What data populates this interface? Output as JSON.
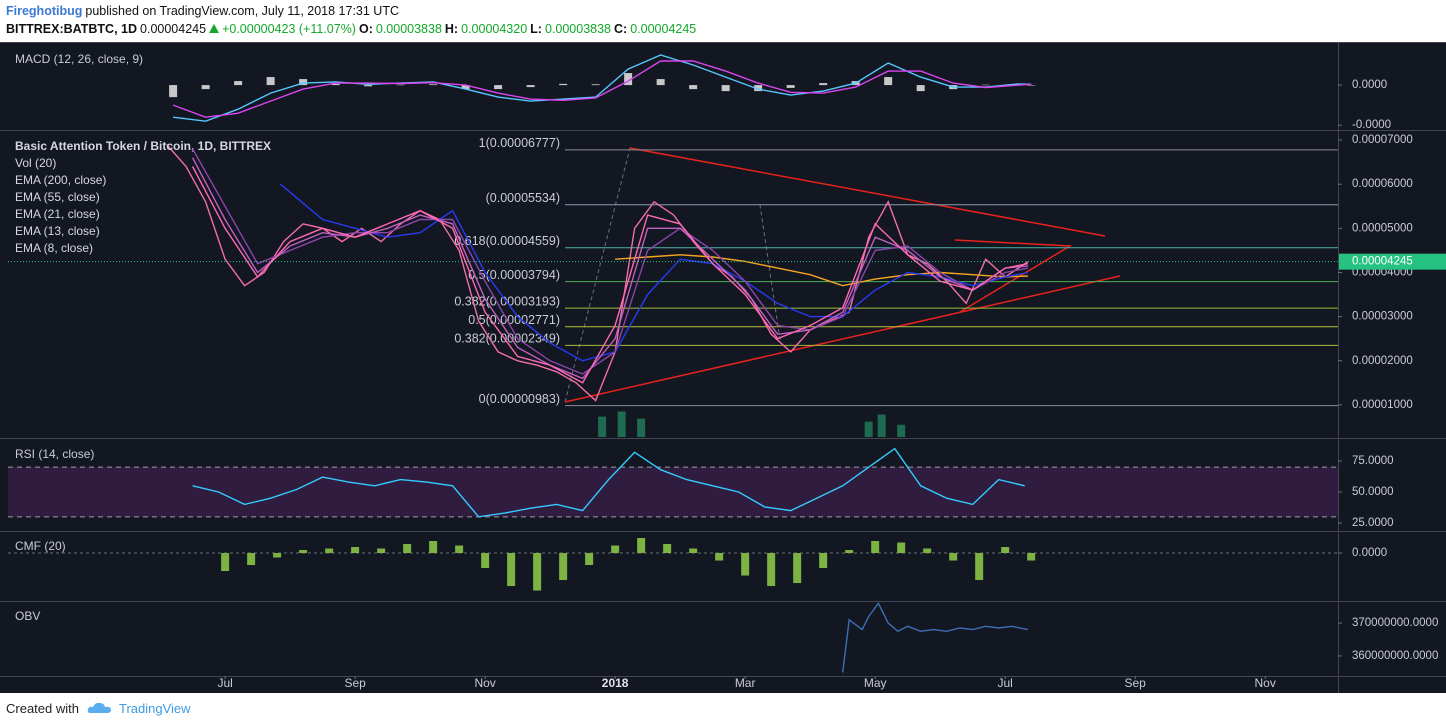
{
  "header": {
    "author": "Fireghotibug",
    "published": "published on TradingView.com, July 11, 2018 17:31 UTC",
    "symbol": "BITTREX:BATBTC, 1D",
    "last": "0.00004245",
    "change": "+0.00000423 (+11.07%)",
    "o_label": "O:",
    "open": "0.00003838",
    "h_label": "H:",
    "high": "0.00004320",
    "l_label": "L:",
    "low": "0.00003838",
    "c_label": "C:",
    "close": "0.00004245"
  },
  "footer": {
    "created_with": "Created with",
    "brand": "TradingView"
  },
  "chart_data": [
    {
      "type": "line",
      "title": "MACD (12, 26, close, 9)",
      "xlim": [
        2.66,
        23.12
      ],
      "ylim": [
        -1.12e-05,
        1e-05
      ],
      "yticks": [
        {
          "value": 0,
          "label": "0.0000"
        },
        {
          "value": -1e-05,
          "label": "-0.0000"
        }
      ],
      "series": [
        {
          "kind": "bar",
          "color": "#c8c8c8",
          "x": [
            5.2,
            5.7,
            6.2,
            6.7,
            7.2,
            7.7,
            8.2,
            8.7,
            9.2,
            9.7,
            10.2,
            10.7,
            11.2,
            11.7,
            12.2,
            12.7,
            13.2,
            13.7,
            14.2,
            14.7,
            15.2,
            15.7,
            16.2,
            16.7,
            17.2,
            17.7,
            18.2,
            18.4
          ],
          "values": [
            -3e-06,
            -1e-06,
            1e-06,
            2e-06,
            1.5e-06,
            3e-07,
            -3e-07,
            1e-07,
            2e-07,
            -1e-06,
            -1e-06,
            -5e-07,
            3e-07,
            2e-07,
            3e-06,
            1.5e-06,
            -1e-06,
            -1.5e-06,
            -1.5e-06,
            -7e-07,
            5e-07,
            1e-06,
            2e-06,
            -1.5e-06,
            -1e-06,
            1e-07,
            3e-07,
            0
          ]
        },
        {
          "kind": "line",
          "color": "#55c8ff",
          "x": [
            5.2,
            5.7,
            6.2,
            6.7,
            7.2,
            7.7,
            8.2,
            8.7,
            9.2,
            9.7,
            10.2,
            10.7,
            11.2,
            11.7,
            12.2,
            12.7,
            13.2,
            13.7,
            14.2,
            14.7,
            15.2,
            15.7,
            16.2,
            16.7,
            17.2,
            17.7,
            18.2,
            18.4
          ],
          "values": [
            -8e-06,
            -9e-06,
            -6e-06,
            -2e-06,
            5e-07,
            8e-07,
            2e-07,
            5e-07,
            8e-07,
            -1e-06,
            -3e-06,
            -4e-06,
            -3.5e-06,
            -3e-06,
            4e-06,
            7.5e-06,
            5e-06,
            2e-06,
            -1e-06,
            -2.5e-06,
            -1.5e-06,
            5e-07,
            5.5e-06,
            2e-06,
            -5e-07,
            -5e-07,
            3e-07,
            2e-07
          ]
        },
        {
          "kind": "line",
          "color": "#d946ef",
          "x": [
            5.2,
            5.7,
            6.2,
            6.7,
            7.2,
            7.7,
            8.2,
            8.7,
            9.2,
            9.7,
            10.2,
            10.7,
            11.2,
            11.7,
            12.2,
            12.7,
            13.2,
            13.7,
            14.2,
            14.7,
            15.2,
            15.7,
            16.2,
            16.7,
            17.2,
            17.7,
            18.2,
            18.4
          ],
          "values": [
            -5e-06,
            -8e-06,
            -7e-06,
            -4e-06,
            -1e-06,
            5e-07,
            5e-07,
            4e-07,
            6e-07,
            0,
            -2e-06,
            -3.5e-06,
            -3.8e-06,
            -3.2e-06,
            1e-06,
            6e-06,
            6e-06,
            3.5e-06,
            5e-07,
            -1.8e-06,
            -2e-06,
            -5e-07,
            3.5e-06,
            3.5e-06,
            5e-07,
            -6e-07,
            0,
            2e-07
          ]
        }
      ]
    },
    {
      "type": "line",
      "legend": true,
      "xlim": [
        2.66,
        23.12
      ],
      "ylim": [
        2.73e-06,
        7.205e-05
      ],
      "yticks": [
        {
          "value": 7e-05,
          "label": "0.00007000"
        },
        {
          "value": 6e-05,
          "label": "0.00006000"
        },
        {
          "value": 5e-05,
          "label": "0.00005000"
        },
        {
          "value": 4e-05,
          "label": "0.00004000"
        },
        {
          "value": 3e-05,
          "label": "0.00003000"
        },
        {
          "value": 2e-05,
          "label": "0.00002000"
        },
        {
          "value": 1e-05,
          "label": "0.00001000"
        }
      ],
      "last": {
        "value": 4.245e-05,
        "label": "0.00004245",
        "color": "#26c281"
      },
      "levels": [
        {
          "value": 6.777e-05,
          "label": "1(0.00006777)",
          "color": "#8a8d96"
        },
        {
          "value": 5.534e-05,
          "label": "(0.00005534)",
          "color": "#8a9bb0"
        },
        {
          "value": 4.559e-05,
          "label": "0.618(0.00004559)",
          "color": "#4fb3a9"
        },
        {
          "value": 3.794e-05,
          "label": "0.5(0.00003794)",
          "color": "#4caf50"
        },
        {
          "value": 3.193e-05,
          "label": "0.382(0.00003193)",
          "color": "#9bbf3a"
        },
        {
          "value": 2.771e-05,
          "label": "0.5(0.00002771)",
          "color": "#b5c33a"
        },
        {
          "value": 2.349e-05,
          "label": "0.382(0.00002349)",
          "color": "#a8b83a"
        },
        {
          "value": 9.83e-06,
          "label": "0(0.00000983)",
          "color": "#8a8d96"
        }
      ],
      "series": [
        {
          "name": "Basic Attention Token / Bitcoin, 1D, BITTREX",
          "kind": "line",
          "color": "#f06fa6",
          "x": [
            5.1,
            5.4,
            5.7,
            6.0,
            6.3,
            6.6,
            6.9,
            7.2,
            7.5,
            7.8,
            8.1,
            8.4,
            8.7,
            9.0,
            9.3,
            9.6,
            9.9,
            10.2,
            10.5,
            10.8,
            11.1,
            11.4,
            11.7,
            12.0,
            12.3,
            12.6,
            12.9,
            13.2,
            13.5,
            13.8,
            14.1,
            14.4,
            14.7,
            15.0,
            15.3,
            15.6,
            15.9,
            16.2,
            16.5,
            16.8,
            17.1,
            17.4,
            17.7,
            18.0,
            18.35
          ],
          "values": [
            6.9e-05,
            6.4e-05,
            5.6e-05,
            4.3e-05,
            3.7e-05,
            4e-05,
            4.7e-05,
            5.1e-05,
            5e-05,
            4.7e-05,
            5e-05,
            4.7e-05,
            5.1e-05,
            5.4e-05,
            5.2e-05,
            4.5e-05,
            2.9e-05,
            2.2e-05,
            2e-05,
            1.9e-05,
            1.75e-05,
            1.5e-05,
            1.1e-05,
            2.2e-05,
            5e-05,
            5.6e-05,
            5.3e-05,
            4.7e-05,
            4.2e-05,
            3.9e-05,
            3.4e-05,
            2.6e-05,
            2.2e-05,
            2.7e-05,
            2.9e-05,
            3.1e-05,
            4.8e-05,
            5.6e-05,
            4.4e-05,
            4.2e-05,
            3.8e-05,
            3.3e-05,
            4.3e-05,
            3.9e-05,
            4.245e-05
          ]
        },
        {
          "name": "Vol (20)",
          "kind": "bar",
          "color": "#1f6b52",
          "ylim": [
            0,
            300000000
          ],
          "x": [
            11.8,
            12.1,
            12.4,
            15.9,
            16.1,
            16.4
          ],
          "values": [
            20000000,
            25000000,
            18000000,
            15000000,
            22000000,
            12000000
          ]
        },
        {
          "name": "EMA (200, close)",
          "kind": "line",
          "color": "#f5a623",
          "x": [
            12.0,
            12.5,
            13,
            13.5,
            14,
            14.5,
            15,
            15.5,
            16,
            16.5,
            17,
            17.5,
            18,
            18.35
          ],
          "values": [
            4.3e-05,
            4.35e-05,
            4.4e-05,
            4.35e-05,
            4.25e-05,
            4.1e-05,
            3.95e-05,
            3.7e-05,
            3.85e-05,
            3.95e-05,
            4e-05,
            3.95e-05,
            3.9e-05,
            3.92e-05
          ]
        },
        {
          "name": "EMA (55, close)",
          "kind": "line",
          "color": "#2a3af0",
          "x": [
            6.85,
            7.5,
            8,
            8.5,
            9,
            9.5,
            10,
            10.5,
            11,
            11.5,
            12,
            12.5,
            13,
            13.5,
            14,
            14.5,
            15,
            15.5,
            16,
            16.5,
            17,
            17.5,
            18,
            18.35
          ],
          "values": [
            6e-05,
            5.2e-05,
            5e-05,
            4.8e-05,
            4.9e-05,
            5.4e-05,
            4e-05,
            3e-05,
            2.4e-05,
            2e-05,
            2.2e-05,
            3.5e-05,
            4.3e-05,
            4.2e-05,
            3.8e-05,
            3.3e-05,
            3e-05,
            3e-05,
            3.6e-05,
            4e-05,
            3.9e-05,
            3.7e-05,
            3.9e-05,
            4e-05
          ]
        },
        {
          "name": "EMA (21, close)",
          "kind": "line",
          "color": "#8e44ad",
          "x": [
            5.5,
            6,
            6.5,
            7,
            7.5,
            8,
            8.5,
            9,
            9.5,
            10,
            10.5,
            11,
            11.5,
            12,
            12.5,
            13,
            13.5,
            14,
            14.5,
            15,
            15.5,
            16,
            16.5,
            17,
            17.5,
            18,
            18.35
          ],
          "values": [
            6.8e-05,
            5.5e-05,
            4.2e-05,
            4.5e-05,
            4.8e-05,
            4.9e-05,
            4.9e-05,
            5.2e-05,
            5.2e-05,
            3.8e-05,
            2.5e-05,
            2e-05,
            1.7e-05,
            2.2e-05,
            4.5e-05,
            5e-05,
            4.5e-05,
            3.8e-05,
            2.8e-05,
            2.7e-05,
            3e-05,
            4.5e-05,
            4.6e-05,
            4e-05,
            3.6e-05,
            4e-05,
            4.1e-05
          ]
        },
        {
          "name": "EMA (13, close)",
          "kind": "line",
          "color": "#c060c0",
          "x": [
            5.5,
            6,
            6.5,
            7,
            7.5,
            8,
            8.5,
            9,
            9.5,
            10,
            10.5,
            11,
            11.5,
            12,
            12.5,
            13,
            13.5,
            14,
            14.5,
            15,
            15.5,
            16,
            16.5,
            17,
            17.5,
            18,
            18.35
          ],
          "values": [
            6.6e-05,
            5.2e-05,
            4e-05,
            4.6e-05,
            4.9e-05,
            4.8e-05,
            5e-05,
            5.3e-05,
            5.1e-05,
            3.4e-05,
            2.3e-05,
            1.9e-05,
            1.6e-05,
            2.5e-05,
            5e-05,
            5e-05,
            4.3e-05,
            3.6e-05,
            2.6e-05,
            2.7e-05,
            3.1e-05,
            4.8e-05,
            4.5e-05,
            3.9e-05,
            3.6e-05,
            4.1e-05,
            4.15e-05
          ]
        },
        {
          "name": "EMA (8, close)",
          "kind": "line",
          "color": "#ff69b4",
          "x": [
            5.5,
            6,
            6.5,
            7,
            7.5,
            8,
            8.5,
            9,
            9.5,
            10,
            10.5,
            11,
            11.5,
            12,
            12.5,
            13,
            13.5,
            14,
            14.5,
            15,
            15.5,
            16,
            16.5,
            17,
            17.5,
            18,
            18.35
          ],
          "values": [
            6.4e-05,
            5e-05,
            3.9e-05,
            4.7e-05,
            5e-05,
            4.8e-05,
            5.1e-05,
            5.4e-05,
            5e-05,
            3.1e-05,
            2.1e-05,
            1.9e-05,
            1.5e-05,
            2.8e-05,
            5.3e-05,
            5.1e-05,
            4.2e-05,
            3.5e-05,
            2.5e-05,
            2.8e-05,
            3.2e-05,
            5.1e-05,
            4.4e-05,
            3.8e-05,
            3.6e-05,
            4.1e-05,
            4.2e-05
          ]
        }
      ]
    },
    {
      "type": "line",
      "title": "RSI (14, close)",
      "xlim": [
        2.66,
        23.12
      ],
      "ylim": [
        19.4,
        91.9
      ],
      "yticks": [
        {
          "value": 75,
          "label": "75.0000"
        },
        {
          "value": 50,
          "label": "50.0000"
        },
        {
          "value": 25,
          "label": "25.0000"
        }
      ],
      "band": [
        30,
        70
      ],
      "band_color": "#3b1f4a",
      "series": [
        {
          "kind": "line",
          "color": "#33ccff",
          "x": [
            5.5,
            5.9,
            6.3,
            6.7,
            7.1,
            7.5,
            7.9,
            8.3,
            8.7,
            9.1,
            9.5,
            9.9,
            10.3,
            10.7,
            11.1,
            11.5,
            11.9,
            12.3,
            12.7,
            13.1,
            13.5,
            13.9,
            14.3,
            14.7,
            15.1,
            15.5,
            15.9,
            16.3,
            16.7,
            17.1,
            17.5,
            17.9,
            18.3
          ],
          "values": [
            55,
            50,
            40,
            45,
            52,
            62,
            58,
            55,
            60,
            58,
            55,
            30,
            33,
            37,
            40,
            35,
            60,
            82,
            68,
            60,
            55,
            50,
            38,
            35,
            45,
            55,
            70,
            85,
            55,
            45,
            40,
            60,
            55
          ]
        }
      ]
    },
    {
      "type": "line",
      "title": "CMF (20)",
      "xlim": [
        2.66,
        23.12
      ],
      "ylim": [
        -0.313,
        0.14
      ],
      "yticks": [
        {
          "value": 0,
          "label": "0.0000"
        }
      ],
      "zero_line": true,
      "series": [
        {
          "kind": "bar",
          "color": "#7cb342",
          "x": [
            6.0,
            6.4,
            6.8,
            7.2,
            7.6,
            8.0,
            8.4,
            8.8,
            9.2,
            9.6,
            10.0,
            10.4,
            10.8,
            11.2,
            11.6,
            12.0,
            12.4,
            12.8,
            13.2,
            13.6,
            14.0,
            14.4,
            14.8,
            15.2,
            15.6,
            16.0,
            16.4,
            16.8,
            17.2,
            17.6,
            18.0,
            18.4
          ],
          "values": [
            -0.12,
            -0.08,
            -0.03,
            0.02,
            0.03,
            0.04,
            0.03,
            0.06,
            0.08,
            0.05,
            -0.1,
            -0.22,
            -0.25,
            -0.18,
            -0.08,
            0.05,
            0.1,
            0.06,
            0.03,
            -0.05,
            -0.15,
            -0.22,
            -0.2,
            -0.1,
            0.02,
            0.08,
            0.07,
            0.03,
            -0.05,
            -0.18,
            0.04,
            -0.05
          ]
        }
      ]
    },
    {
      "type": "line",
      "title": "OBV",
      "xlim": [
        2.66,
        23.12
      ],
      "ylim": [
        354200000,
        376400000
      ],
      "yticks": [
        {
          "value": 370000000,
          "label": "370000000.0000"
        },
        {
          "value": 360000000,
          "label": "360000000.0000"
        }
      ],
      "xticks": [
        {
          "value": 6,
          "label": "Jul"
        },
        {
          "value": 8,
          "label": "Sep"
        },
        {
          "value": 10,
          "label": "Nov"
        },
        {
          "value": 12,
          "label": "2018"
        },
        {
          "value": 14,
          "label": "Mar"
        },
        {
          "value": 16,
          "label": "May"
        },
        {
          "value": 18,
          "label": "Jul"
        },
        {
          "value": 20,
          "label": "Sep"
        },
        {
          "value": 22,
          "label": "Nov"
        }
      ],
      "series": [
        {
          "kind": "line",
          "color": "#3d6eb5",
          "x": [
            15.5,
            15.6,
            15.8,
            15.9,
            16.05,
            16.2,
            16.35,
            16.5,
            16.7,
            16.9,
            17.1,
            17.3,
            17.5,
            17.7,
            17.9,
            18.1,
            18.35
          ],
          "values": [
            355000000,
            371000000,
            368000000,
            372000000,
            376000000,
            370000000,
            367500000,
            369000000,
            367500000,
            368000000,
            367500000,
            368500000,
            368000000,
            369000000,
            368500000,
            369000000,
            368000000
          ]
        }
      ]
    }
  ]
}
